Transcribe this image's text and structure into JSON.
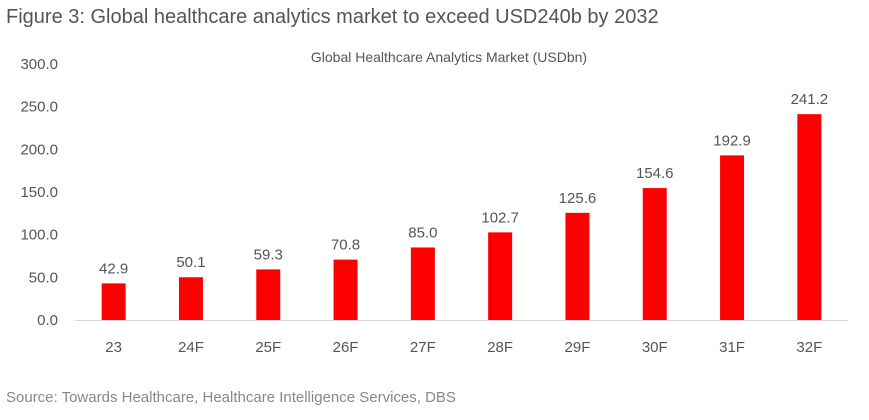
{
  "figure_title": "Figure 3: Global healthcare analytics market to exceed USD240b by 2032",
  "source": "Source: Towards Healthcare, Healthcare Intelligence Services, DBS",
  "chart_data": {
    "type": "bar",
    "title": "Global Healthcare Analytics Market (USDbn)",
    "xlabel": "",
    "ylabel": "",
    "categories": [
      "23",
      "24F",
      "25F",
      "26F",
      "27F",
      "28F",
      "29F",
      "30F",
      "31F",
      "32F"
    ],
    "values": [
      42.9,
      50.1,
      59.3,
      70.8,
      85.0,
      102.7,
      125.6,
      154.6,
      192.9,
      241.2
    ],
    "value_labels": [
      "42.9",
      "50.1",
      "59.3",
      "70.8",
      "85.0",
      "102.7",
      "125.6",
      "154.6",
      "192.9",
      "241.2"
    ],
    "ylim": [
      0,
      300
    ],
    "yticks": [
      "0.0",
      "50.0",
      "100.0",
      "150.0",
      "200.0",
      "250.0",
      "300.0"
    ],
    "ytick_values": [
      0,
      50,
      100,
      150,
      200,
      250,
      300
    ],
    "grid": false,
    "legend": "none",
    "bar_color": "#ff0000",
    "axis_color": "#d9d9d9"
  }
}
